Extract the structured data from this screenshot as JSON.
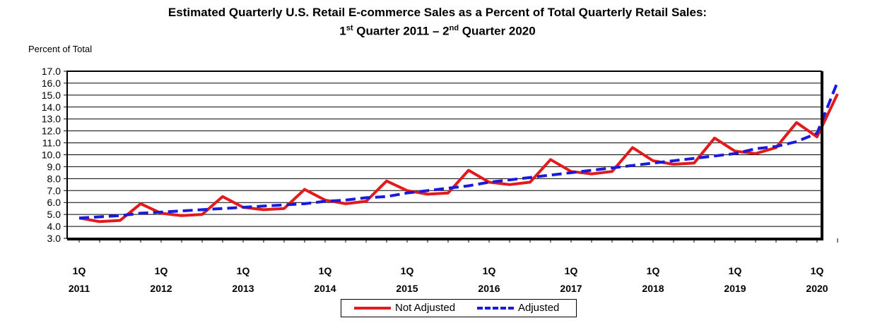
{
  "chart_data": {
    "type": "line",
    "title_line1": "Estimated Quarterly U.S. Retail E-commerce Sales as a Percent of Total Quarterly Retail Sales:",
    "title_line2_parts": [
      "1",
      "st",
      " Quarter 2011 – 2",
      "nd",
      " Quarter 2020"
    ],
    "ylabel": "Percent of Total",
    "ylim": [
      3.0,
      17.0
    ],
    "yticks": [
      "3.0",
      "4.0",
      "5.0",
      "6.0",
      "7.0",
      "8.0",
      "9.0",
      "10.0",
      "11.0",
      "12.0",
      "13.0",
      "14.0",
      "15.0",
      "16.0",
      "17.0"
    ],
    "xtick_labels": [
      [
        "1Q",
        "2011"
      ],
      [
        "1Q",
        "2012"
      ],
      [
        "1Q",
        "2013"
      ],
      [
        "1Q",
        "2014"
      ],
      [
        "1Q",
        "2015"
      ],
      [
        "1Q",
        "2016"
      ],
      [
        "1Q",
        "2017"
      ],
      [
        "1Q",
        "2018"
      ],
      [
        "1Q",
        "2019"
      ],
      [
        "1Q",
        "2020"
      ]
    ],
    "x": [
      "2011Q1",
      "2011Q2",
      "2011Q3",
      "2011Q4",
      "2012Q1",
      "2012Q2",
      "2012Q3",
      "2012Q4",
      "2013Q1",
      "2013Q2",
      "2013Q3",
      "2013Q4",
      "2014Q1",
      "2014Q2",
      "2014Q3",
      "2014Q4",
      "2015Q1",
      "2015Q2",
      "2015Q3",
      "2015Q4",
      "2016Q1",
      "2016Q2",
      "2016Q3",
      "2016Q4",
      "2017Q1",
      "2017Q2",
      "2017Q3",
      "2017Q4",
      "2018Q1",
      "2018Q2",
      "2018Q3",
      "2018Q4",
      "2019Q1",
      "2019Q2",
      "2019Q3",
      "2019Q4",
      "2020Q1",
      "2020Q2"
    ],
    "series": [
      {
        "name": "Not Adjusted",
        "color": "#e31a1c",
        "style": "solid",
        "values": [
          4.7,
          4.4,
          4.5,
          5.9,
          5.1,
          4.9,
          5.0,
          6.5,
          5.6,
          5.4,
          5.5,
          7.1,
          6.2,
          5.9,
          6.1,
          7.8,
          7.0,
          6.7,
          6.8,
          8.7,
          7.7,
          7.5,
          7.7,
          9.6,
          8.6,
          8.4,
          8.6,
          10.6,
          9.5,
          9.2,
          9.3,
          11.4,
          10.3,
          10.1,
          10.6,
          12.7,
          11.5,
          15.1
        ]
      },
      {
        "name": "Adjusted",
        "color": "#1a1adc",
        "style": "dashed",
        "values": [
          4.7,
          4.8,
          4.9,
          5.1,
          5.2,
          5.3,
          5.4,
          5.5,
          5.6,
          5.7,
          5.8,
          5.9,
          6.1,
          6.2,
          6.4,
          6.5,
          6.8,
          7.0,
          7.2,
          7.4,
          7.7,
          7.9,
          8.1,
          8.3,
          8.5,
          8.7,
          8.9,
          9.1,
          9.3,
          9.5,
          9.7,
          9.9,
          10.1,
          10.5,
          10.7,
          11.1,
          11.8,
          16.1
        ]
      }
    ],
    "grid": "horizontal",
    "legend_position": "bottom-center"
  }
}
